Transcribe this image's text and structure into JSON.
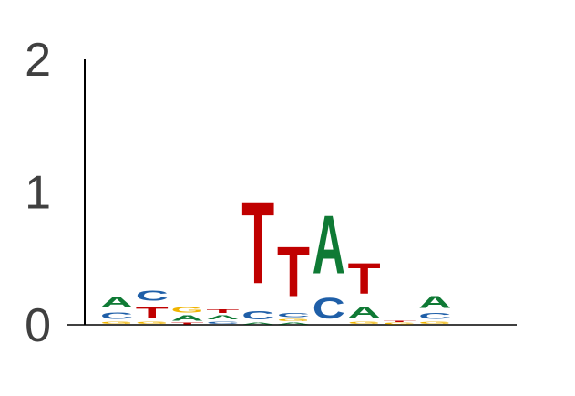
{
  "chart_data": {
    "type": "sequence-logo",
    "ylim": [
      0,
      2
    ],
    "yticks": [
      "0",
      "1",
      "2"
    ],
    "title": "",
    "xlabel": "",
    "ylabel": "",
    "colors": {
      "A": "#0f7a35",
      "C": "#1f5fa8",
      "G": "#f0b400",
      "T": "#c00000"
    },
    "positions": [
      {
        "index": 1,
        "stack": [
          [
            "G",
            0.03
          ],
          [
            "C",
            0.08
          ],
          [
            "A",
            0.12
          ]
        ]
      },
      {
        "index": 2,
        "stack": [
          [
            "G",
            0.03
          ],
          [
            "T",
            0.13
          ],
          [
            "C",
            0.12
          ]
        ]
      },
      {
        "index": 3,
        "stack": [
          [
            "T",
            0.02
          ],
          [
            "A",
            0.06
          ],
          [
            "G",
            0.06
          ]
        ]
      },
      {
        "index": 4,
        "stack": [
          [
            "C",
            0.03
          ],
          [
            "A",
            0.05
          ],
          [
            "T",
            0.04
          ]
        ]
      },
      {
        "index": 5,
        "stack": [
          [
            "A",
            0.02
          ],
          [
            "C",
            0.1
          ],
          [
            "T",
            0.99
          ]
        ]
      },
      {
        "index": 6,
        "stack": [
          [
            "A",
            0.02
          ],
          [
            "G",
            0.03
          ],
          [
            "C",
            0.05
          ],
          [
            "T",
            0.6
          ]
        ]
      },
      {
        "index": 7,
        "stack": [
          [
            "C",
            0.25
          ],
          [
            "A",
            0.7
          ]
        ]
      },
      {
        "index": 8,
        "stack": [
          [
            "G",
            0.03
          ],
          [
            "A",
            0.13
          ],
          [
            "T",
            0.37
          ]
        ]
      },
      {
        "index": 9,
        "stack": [
          [
            "G",
            0.02
          ],
          [
            "T",
            0.01
          ]
        ]
      },
      {
        "index": 10,
        "stack": [
          [
            "G",
            0.03
          ],
          [
            "C",
            0.07
          ],
          [
            "A",
            0.14
          ]
        ]
      }
    ]
  }
}
